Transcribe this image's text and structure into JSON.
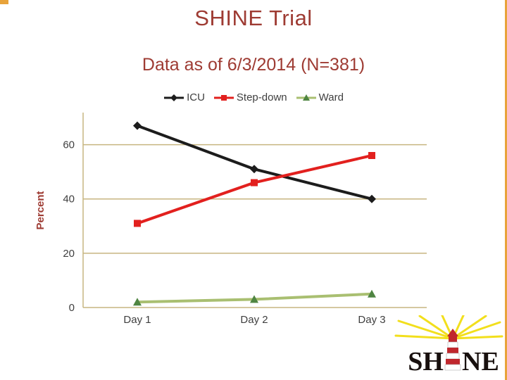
{
  "slide": {
    "title": "SHINE Trial",
    "subtitle": "Data as of 6/3/2014 (N=381)"
  },
  "chart_data": {
    "type": "line",
    "categories": [
      "Day 1",
      "Day 2",
      "Day 3"
    ],
    "series": [
      {
        "name": "ICU",
        "values": [
          67,
          51,
          40
        ],
        "color": "#1c1c1c",
        "marker": "diamond"
      },
      {
        "name": "Step-down",
        "values": [
          31,
          46,
          56
        ],
        "color": "#e2201e",
        "marker": "square"
      },
      {
        "name": "Ward",
        "values": [
          2,
          3,
          5
        ],
        "color": "#a9bf71",
        "marker": "triangle",
        "marker_color": "#4f8542"
      }
    ],
    "xlabel": "",
    "ylabel": "Percent",
    "yticks": [
      0,
      20,
      40,
      60
    ],
    "ylim": [
      0,
      70
    ],
    "grid": true,
    "legend_position": "top",
    "grid_color": "#c7b580",
    "tick_color": "#3f3f3f"
  },
  "logo": {
    "left": "SH",
    "right": "NE",
    "ray_color": "#f2df1c",
    "stripe_color": "#c0272d"
  },
  "colors": {
    "heading": "#9e3b33",
    "accent_border": "#e8a33a"
  }
}
